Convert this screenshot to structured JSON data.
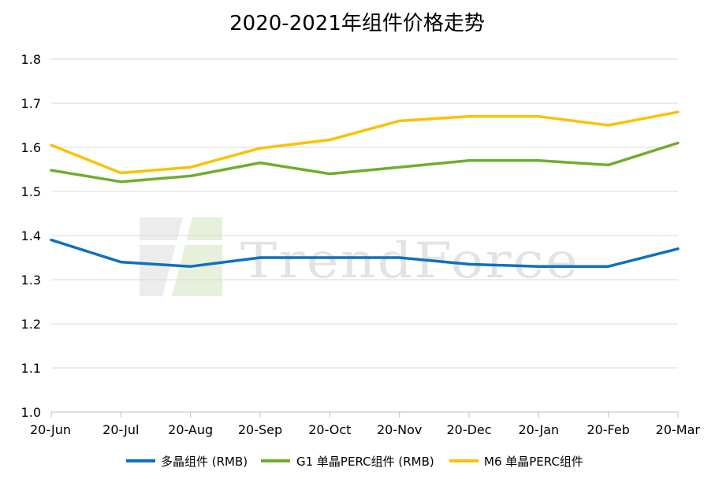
{
  "chart_data": {
    "type": "line",
    "title": "2020-2021年组件价格走势",
    "xlabel": "",
    "ylabel": "",
    "categories": [
      "20-Jun",
      "20-Jul",
      "20-Aug",
      "20-Sep",
      "20-Oct",
      "20-Nov",
      "20-Dec",
      "20-Jan",
      "20-Feb",
      "20-Mar"
    ],
    "ylim": [
      1.0,
      1.8
    ],
    "yticks": [
      "1.0",
      "1.1",
      "1.2",
      "1.3",
      "1.4",
      "1.5",
      "1.6",
      "1.7",
      "1.8"
    ],
    "grid": true,
    "legend_position": "bottom",
    "series": [
      {
        "name": "多晶组件 (RMB)",
        "color": "#0e70c0",
        "values": [
          1.39,
          1.34,
          1.33,
          1.35,
          1.35,
          1.35,
          1.335,
          1.33,
          1.33,
          1.37
        ]
      },
      {
        "name": "G1 单晶PERC组件 (RMB)",
        "color": "#70ad2f",
        "values": [
          1.548,
          1.522,
          1.535,
          1.565,
          1.54,
          1.555,
          1.57,
          1.57,
          1.56,
          1.61
        ]
      },
      {
        "name": "M6 单晶PERC组件",
        "color": "#fbc103",
        "values": [
          1.605,
          1.542,
          1.555,
          1.598,
          1.617,
          1.66,
          1.67,
          1.67,
          1.65,
          1.68
        ]
      }
    ]
  },
  "watermark": {
    "text": "TrendForce"
  }
}
